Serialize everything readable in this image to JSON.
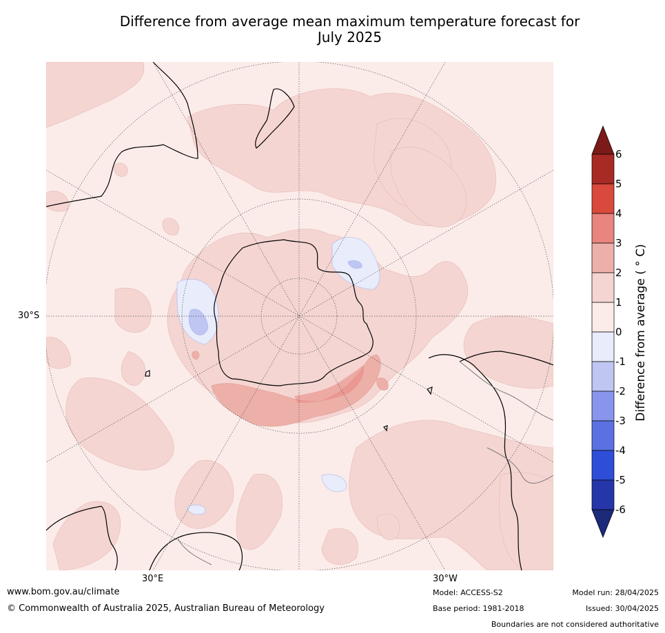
{
  "title_line1": "Difference from average mean maximum temperature forecast for",
  "title_line2": "July 2025",
  "map": {
    "projection": "south-polar-stereographic",
    "lat_label": "30°S",
    "lon_labels": [
      "30°E",
      "30°W"
    ],
    "boundaries_note": "Boundaries are not considered authoritative"
  },
  "colorbar": {
    "title": "Difference from average ( ° C)",
    "ticks": [
      "6",
      "5",
      "4",
      "3",
      "2",
      "1",
      "0",
      "-1",
      "-2",
      "-3",
      "-4",
      "-5",
      "-6"
    ],
    "colors": {
      "above_6": "#7b1a18",
      "5_6": "#a82a24",
      "4_5": "#d9493c",
      "3_4": "#e8857e",
      "2_3": "#edb0a9",
      "1_2": "#f4d5d2",
      "0_1": "#fbece9",
      "-1_0": "#e8ecfb",
      "-2_-1": "#bfc6f2",
      "-3_-2": "#8796ec",
      "-4_-3": "#5b71e3",
      "-5_-4": "#2e4ed8",
      "-6_-5": "#2536a8",
      "below_-6": "#1c2a7a"
    }
  },
  "footer": {
    "website": "www.bom.gov.au/climate",
    "copyright": "© Commonwealth of Australia 2025, Australian Bureau of Meteorology",
    "model": "Model: ACCESS-S2",
    "base_period": "Base period: 1981-2018",
    "model_run": "Model run: 28/04/2025",
    "issued": "Issued: 30/04/2025"
  }
}
